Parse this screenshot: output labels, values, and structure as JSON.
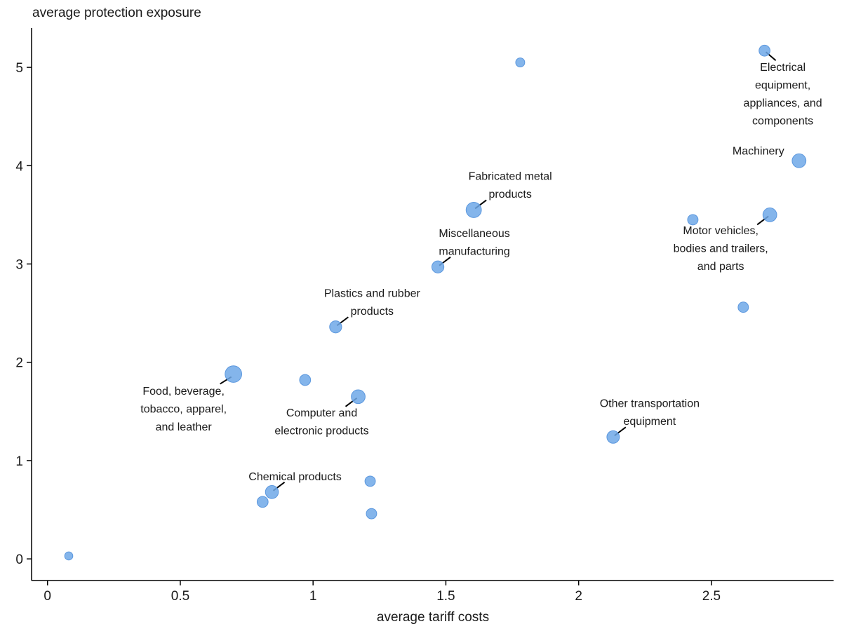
{
  "chart_data": {
    "type": "scatter",
    "title": "",
    "xlabel": "average tariff costs",
    "ylabel": "average protection exposure",
    "xlim": [
      -0.06,
      2.96
    ],
    "ylim": [
      -0.22,
      5.4
    ],
    "xticks": [
      "0",
      "0.5",
      "1",
      "1.5",
      "2",
      "2.5"
    ],
    "yticks": [
      "0",
      "1",
      "2",
      "3",
      "4",
      "5"
    ],
    "grid": false,
    "legend": "none",
    "marker_color": "#6fa8e8",
    "points": [
      {
        "x": 0.08,
        "y": 0.03,
        "size": 1
      },
      {
        "x": 0.7,
        "y": 1.88,
        "size": 10,
        "label": [
          "Food, beverage,",
          "tobacco, apparel,",
          "and leather"
        ]
      },
      {
        "x": 0.81,
        "y": 0.58,
        "size": 3
      },
      {
        "x": 0.845,
        "y": 0.68,
        "size": 5,
        "label": [
          "Chemical products"
        ]
      },
      {
        "x": 0.97,
        "y": 1.82,
        "size": 3
      },
      {
        "x": 1.085,
        "y": 2.36,
        "size": 4,
        "label": [
          "Plastics and rubber",
          "products"
        ]
      },
      {
        "x": 1.17,
        "y": 1.65,
        "size": 6,
        "label": [
          "Computer and",
          "electronic products"
        ]
      },
      {
        "x": 1.215,
        "y": 0.79,
        "size": 2.5
      },
      {
        "x": 1.22,
        "y": 0.46,
        "size": 2.5
      },
      {
        "x": 1.47,
        "y": 2.97,
        "size": 4,
        "label": [
          "Miscellaneous",
          "manufacturing"
        ]
      },
      {
        "x": 1.605,
        "y": 3.55,
        "size": 8,
        "label": [
          "Fabricated metal",
          "products"
        ]
      },
      {
        "x": 1.78,
        "y": 5.05,
        "size": 1.5
      },
      {
        "x": 2.13,
        "y": 1.24,
        "size": 4.5,
        "label": [
          "Other transportation",
          "equipment"
        ]
      },
      {
        "x": 2.43,
        "y": 3.45,
        "size": 2.5
      },
      {
        "x": 2.62,
        "y": 2.56,
        "size": 2.5
      },
      {
        "x": 2.7,
        "y": 5.17,
        "size": 3,
        "label": [
          "Electrical",
          "equipment,",
          "appliances, and",
          "components"
        ]
      },
      {
        "x": 2.72,
        "y": 3.5,
        "size": 6,
        "label": [
          "Motor vehicles,",
          "bodies and trailers,",
          "and parts"
        ]
      },
      {
        "x": 2.83,
        "y": 4.05,
        "size": 6,
        "label": [
          "Machinery"
        ]
      }
    ]
  }
}
